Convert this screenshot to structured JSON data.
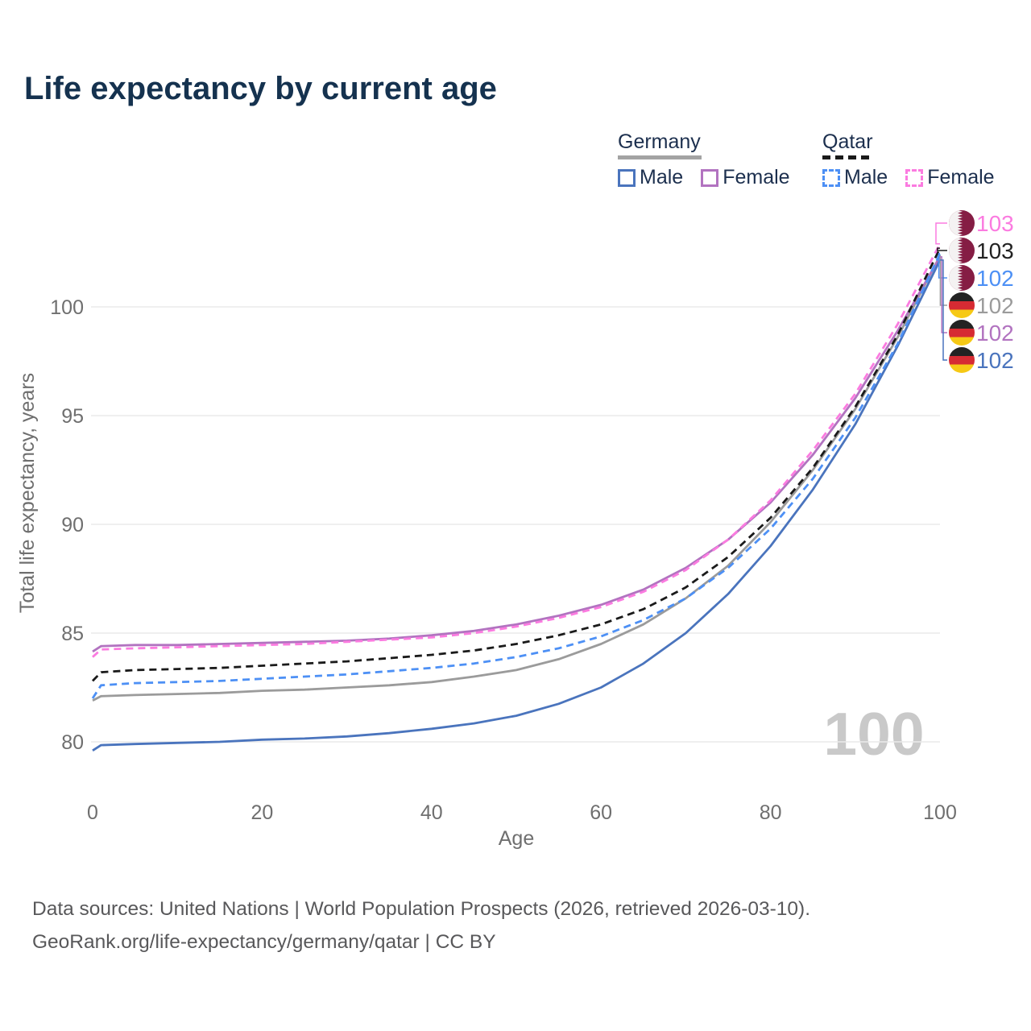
{
  "title": "Life expectancy by current age",
  "legend": {
    "groups": [
      {
        "label": "Germany",
        "line_style": "solid",
        "underline_color": "#a3a3a3",
        "items": [
          {
            "label": "Male",
            "color": "#4a74bd",
            "dashed": false
          },
          {
            "label": "Female",
            "color": "#b273c0",
            "dashed": false
          }
        ]
      },
      {
        "label": "Qatar",
        "line_style": "dashed",
        "underline_color": "#1a1a1a",
        "items": [
          {
            "label": "Male",
            "color": "#4d90f5",
            "dashed": true
          },
          {
            "label": "Female",
            "color": "#fb7be0",
            "dashed": true
          }
        ]
      }
    ]
  },
  "watermark": "100",
  "chart_data": {
    "type": "line",
    "title": "Life expectancy by current age",
    "xlabel": "Age",
    "ylabel": "Total life expectancy, years",
    "xlim": [
      0,
      100
    ],
    "ylim": [
      78.5,
      103.5
    ],
    "xticks": [
      0,
      20,
      40,
      60,
      80,
      100
    ],
    "yticks": [
      80,
      85,
      90,
      95,
      100
    ],
    "grid": "horizontal-only",
    "legend_position": "top-right",
    "ages": [
      0,
      1,
      5,
      10,
      15,
      20,
      25,
      30,
      35,
      40,
      45,
      50,
      55,
      60,
      65,
      70,
      75,
      80,
      85,
      90,
      95,
      100
    ],
    "series": [
      {
        "id": "germany_total",
        "name": "Germany",
        "color": "#9b9b9b",
        "dash": null,
        "values": [
          81.9,
          82.1,
          82.15,
          82.2,
          82.25,
          82.35,
          82.4,
          82.5,
          82.6,
          82.75,
          83.0,
          83.3,
          83.8,
          84.5,
          85.4,
          86.6,
          88.1,
          90.1,
          92.5,
          95.3,
          98.6,
          102.35
        ]
      },
      {
        "id": "germany_female",
        "name": "Germany Female",
        "color": "#b273c0",
        "dash": null,
        "values": [
          84.15,
          84.4,
          84.45,
          84.45,
          84.5,
          84.55,
          84.6,
          84.65,
          84.75,
          84.9,
          85.1,
          85.4,
          85.8,
          86.3,
          87.0,
          88.0,
          89.3,
          91.0,
          93.2,
          95.8,
          98.9,
          102.3
        ]
      },
      {
        "id": "germany_male",
        "name": "Germany Male",
        "color": "#4a74bd",
        "dash": null,
        "values": [
          79.6,
          79.85,
          79.9,
          79.95,
          80.0,
          80.1,
          80.15,
          80.25,
          80.4,
          80.6,
          80.85,
          81.2,
          81.75,
          82.5,
          83.6,
          85.0,
          86.8,
          89.0,
          91.6,
          94.6,
          98.2,
          102.15
        ]
      },
      {
        "id": "qatar_total",
        "name": "Qatar",
        "color": "#1a1a1a",
        "dash": "9 6",
        "values": [
          82.8,
          83.2,
          83.3,
          83.35,
          83.4,
          83.5,
          83.6,
          83.7,
          83.85,
          84.0,
          84.2,
          84.5,
          84.9,
          85.4,
          86.1,
          87.1,
          88.5,
          90.3,
          92.6,
          95.4,
          98.7,
          102.7
        ]
      },
      {
        "id": "qatar_female",
        "name": "Qatar Female",
        "color": "#fb7be0",
        "dash": "9 6",
        "values": [
          83.9,
          84.25,
          84.3,
          84.35,
          84.4,
          84.45,
          84.5,
          84.6,
          84.7,
          84.8,
          85.0,
          85.3,
          85.7,
          86.2,
          86.9,
          87.9,
          89.3,
          91.1,
          93.4,
          96.0,
          99.2,
          102.9
        ]
      },
      {
        "id": "qatar_male",
        "name": "Qatar Male",
        "color": "#4d90f5",
        "dash": "9 6",
        "values": [
          82.0,
          82.6,
          82.7,
          82.75,
          82.8,
          82.9,
          83.0,
          83.1,
          83.25,
          83.4,
          83.6,
          83.9,
          84.3,
          84.85,
          85.6,
          86.6,
          88.0,
          89.8,
          92.1,
          94.9,
          98.3,
          102.45
        ]
      }
    ],
    "end_labels": [
      {
        "series": "qatar_female",
        "value": "103",
        "flag": "qatar",
        "color": "#fb7be0"
      },
      {
        "series": "qatar_total",
        "value": "103",
        "flag": "qatar",
        "color": "#222222"
      },
      {
        "series": "qatar_male",
        "value": "102",
        "flag": "qatar",
        "color": "#4d90f5"
      },
      {
        "series": "germany_total",
        "value": "102",
        "flag": "germany",
        "color": "#9b9b9b"
      },
      {
        "series": "germany_female",
        "value": "102",
        "flag": "germany",
        "color": "#b273c0"
      },
      {
        "series": "germany_male",
        "value": "102",
        "flag": "germany",
        "color": "#4a74bd"
      }
    ]
  },
  "flag_colors": {
    "qatar_maroon": "#851d44",
    "germany_black": "#232323",
    "germany_red": "#d62b33",
    "germany_gold": "#f6c915"
  },
  "footer": {
    "line1": "Data sources: United Nations | World Population Prospects (2026, retrieved 2026-03-10).",
    "line2": "GeoRank.org/life-expectancy/germany/qatar | CC BY"
  }
}
